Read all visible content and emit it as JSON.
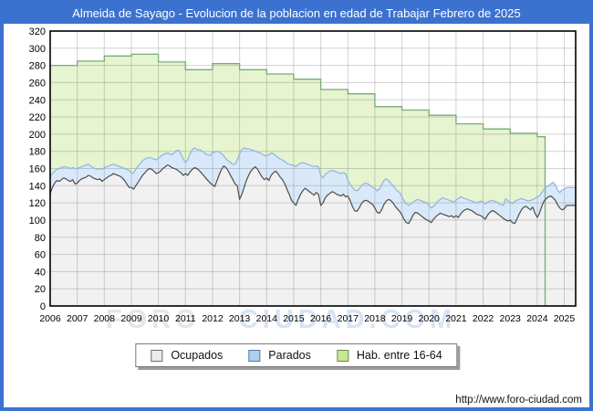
{
  "header": {
    "title": "Almeida de Sayago - Evolucion de la poblacion en edad de Trabajar Febrero de 2025"
  },
  "watermark": {
    "part1": "FORO",
    "part2": "CIUDAD.COM"
  },
  "footer": {
    "url": "http://www.foro-ciudad.com"
  },
  "legend": {
    "position": "bottom-center",
    "items": [
      {
        "label": "Ocupados",
        "color": "#ebebeb",
        "border": "#6b6b6b"
      },
      {
        "label": "Parados",
        "color": "#aecff0",
        "border": "#5a78a0"
      },
      {
        "label": "Hab. entre 16-64",
        "color": "#c6e892",
        "border": "#6d8c4a"
      }
    ]
  },
  "colors": {
    "frame_blue": "#3c72cf",
    "grid": "#cccccc",
    "plot_border": "#000000",
    "hab_fill": "#e6f4cf",
    "hab_line": "#7aab7a",
    "parados_fill": "#d9e9f9",
    "parados_line": "#8fb4e4",
    "ocupados_fill": "#f1f1f1",
    "ocupados_line": "#4d4d4d"
  },
  "chart_data": {
    "type": "area",
    "title": "Almeida de Sayago - Evolucion de la poblacion en edad de Trabajar Febrero de 2025",
    "xlabel": "",
    "ylabel": "",
    "x_axis": {
      "ticks": [
        "2006",
        "2007",
        "2008",
        "2009",
        "2010",
        "2011",
        "2012",
        "2013",
        "2014",
        "2015",
        "2016",
        "2017",
        "2018",
        "2019",
        "2020",
        "2021",
        "2022",
        "2023",
        "2024",
        "2025"
      ]
    },
    "y_axis": {
      "min": 0,
      "max": 320,
      "step": 20,
      "ticks": [
        0,
        20,
        40,
        60,
        80,
        100,
        120,
        140,
        160,
        180,
        200,
        220,
        240,
        260,
        280,
        300,
        320
      ]
    },
    "grid": true,
    "legend_position": "bottom",
    "months_start": "2006-01",
    "months_end": "2025-02",
    "stacking_note": "Parados is stacked on top of Ocupados; Hab. entre 16-64 is the annual step envelope behind both",
    "series": [
      {
        "id": "hab_16_64",
        "name": "Hab. entre 16-64",
        "type": "step-area-annual",
        "years": [
          2006,
          2007,
          2008,
          2009,
          2010,
          2011,
          2012,
          2013,
          2014,
          2015,
          2016,
          2017,
          2018,
          2019,
          2020,
          2021,
          2022,
          2023,
          2024
        ],
        "values": [
          280,
          285,
          291,
          293,
          284,
          275,
          282,
          275,
          270,
          264,
          252,
          247,
          232,
          228,
          222,
          212,
          206,
          201,
          197
        ],
        "ends_at_year_fraction": 2024.29
      },
      {
        "id": "ocupados",
        "name": "Ocupados",
        "type": "area-monthly",
        "years": [
          2006,
          2007,
          2008,
          2009,
          2010,
          2011,
          2012,
          2013,
          2014,
          2015,
          2016,
          2017,
          2018,
          2019,
          2020,
          2021,
          2022,
          2023,
          2024,
          2025
        ],
        "monthly": [
          [
            131,
            138,
            143,
            146,
            145,
            147,
            149,
            148,
            146,
            145,
            147,
            142
          ],
          [
            143,
            146,
            148,
            149,
            150,
            152,
            151,
            149,
            148,
            147,
            148,
            145
          ],
          [
            147,
            149,
            151,
            152,
            154,
            153,
            152,
            151,
            149,
            146,
            142,
            138
          ],
          [
            138,
            136,
            140,
            144,
            148,
            152,
            155,
            158,
            160,
            159,
            157,
            154
          ],
          [
            155,
            157,
            160,
            162,
            164,
            163,
            161,
            160,
            159,
            157,
            155,
            152
          ],
          [
            154,
            152,
            156,
            159,
            161,
            160,
            158,
            155,
            152,
            149,
            146,
            143
          ],
          [
            141,
            139,
            146,
            153,
            159,
            163,
            161,
            157,
            152,
            147,
            142,
            140
          ],
          [
            124,
            130,
            138,
            146,
            152,
            157,
            160,
            162,
            159,
            154,
            150,
            147
          ],
          [
            149,
            146,
            152,
            155,
            157,
            154,
            150,
            147,
            142,
            136,
            130,
            123
          ],
          [
            120,
            117,
            124,
            130,
            134,
            137,
            135,
            133,
            131,
            129,
            132,
            130
          ],
          [
            117,
            120,
            126,
            129,
            131,
            133,
            132,
            130,
            129,
            128,
            130,
            127
          ],
          [
            128,
            123,
            116,
            111,
            110,
            114,
            119,
            122,
            123,
            122,
            120,
            118
          ],
          [
            114,
            109,
            108,
            112,
            118,
            122,
            124,
            123,
            120,
            116,
            113,
            110
          ],
          [
            106,
            100,
            97,
            96,
            101,
            106,
            109,
            108,
            106,
            104,
            102,
            100
          ],
          [
            99,
            97,
            101,
            104,
            106,
            108,
            107,
            106,
            105,
            104,
            105,
            103
          ],
          [
            105,
            103,
            107,
            110,
            112,
            113,
            112,
            111,
            109,
            107,
            106,
            105
          ],
          [
            103,
            101,
            106,
            109,
            111,
            110,
            108,
            106,
            104,
            102,
            100,
            99
          ],
          [
            100,
            97,
            96,
            101,
            107,
            112,
            115,
            116,
            114,
            112,
            115,
            108
          ],
          [
            103,
            108,
            116,
            122,
            125,
            127,
            128,
            126,
            123,
            118,
            114,
            112
          ],
          [
            113,
            117
          ]
        ]
      },
      {
        "id": "parados",
        "name": "Parados",
        "type": "area-monthly-stacked",
        "stacked_on": "ocupados",
        "years": [
          2006,
          2007,
          2008,
          2009,
          2010,
          2011,
          2012,
          2013,
          2014,
          2015,
          2016,
          2017,
          2018,
          2019,
          2020,
          2021,
          2022,
          2023,
          2024,
          2025
        ],
        "monthly": [
          [
            20,
            16,
            14,
            13,
            15,
            14,
            13,
            14,
            15,
            15,
            14,
            18
          ],
          [
            17,
            15,
            14,
            14,
            14,
            13,
            12,
            12,
            12,
            12,
            12,
            14
          ],
          [
            14,
            13,
            12,
            12,
            11,
            11,
            11,
            11,
            12,
            14,
            17,
            20
          ],
          [
            16,
            19,
            19,
            19,
            18,
            17,
            16,
            14,
            13,
            13,
            14,
            16
          ],
          [
            17,
            17,
            16,
            15,
            14,
            14,
            15,
            18,
            22,
            24,
            22,
            19
          ],
          [
            13,
            18,
            21,
            23,
            23,
            22,
            24,
            26,
            27,
            28,
            30,
            32
          ],
          [
            38,
            40,
            34,
            26,
            18,
            12,
            10,
            12,
            15,
            18,
            23,
            30
          ],
          [
            53,
            52,
            46,
            37,
            31,
            25,
            21,
            18,
            20,
            24,
            27,
            28
          ],
          [
            26,
            30,
            26,
            22,
            18,
            19,
            21,
            23,
            26,
            30,
            35,
            41
          ],
          [
            44,
            45,
            41,
            36,
            33,
            29,
            30,
            31,
            32,
            33,
            31,
            32
          ],
          [
            35,
            29,
            27,
            26,
            26,
            25,
            25,
            26,
            26,
            26,
            25,
            27
          ],
          [
            18,
            19,
            22,
            24,
            24,
            22,
            21,
            20,
            20,
            20,
            20,
            20
          ],
          [
            23,
            25,
            28,
            29,
            28,
            26,
            22,
            20,
            20,
            21,
            21,
            22
          ],
          [
            21,
            22,
            22,
            21,
            18,
            15,
            14,
            16,
            17,
            18,
            19,
            20
          ],
          [
            18,
            17,
            15,
            15,
            16,
            16,
            19,
            19,
            19,
            19,
            17,
            18
          ],
          [
            18,
            22,
            20,
            16,
            13,
            11,
            11,
            11,
            12,
            13,
            15,
            17
          ],
          [
            18,
            18,
            15,
            13,
            12,
            12,
            13,
            13,
            14,
            15,
            25,
            23
          ],
          [
            21,
            22,
            26,
            22,
            17,
            13,
            9,
            7,
            8,
            11,
            9,
            17
          ],
          [
            24,
            20,
            16,
            14,
            13,
            13,
            14,
            18,
            18,
            17,
            18,
            23
          ],
          [
            23,
            21
          ]
        ]
      }
    ]
  }
}
